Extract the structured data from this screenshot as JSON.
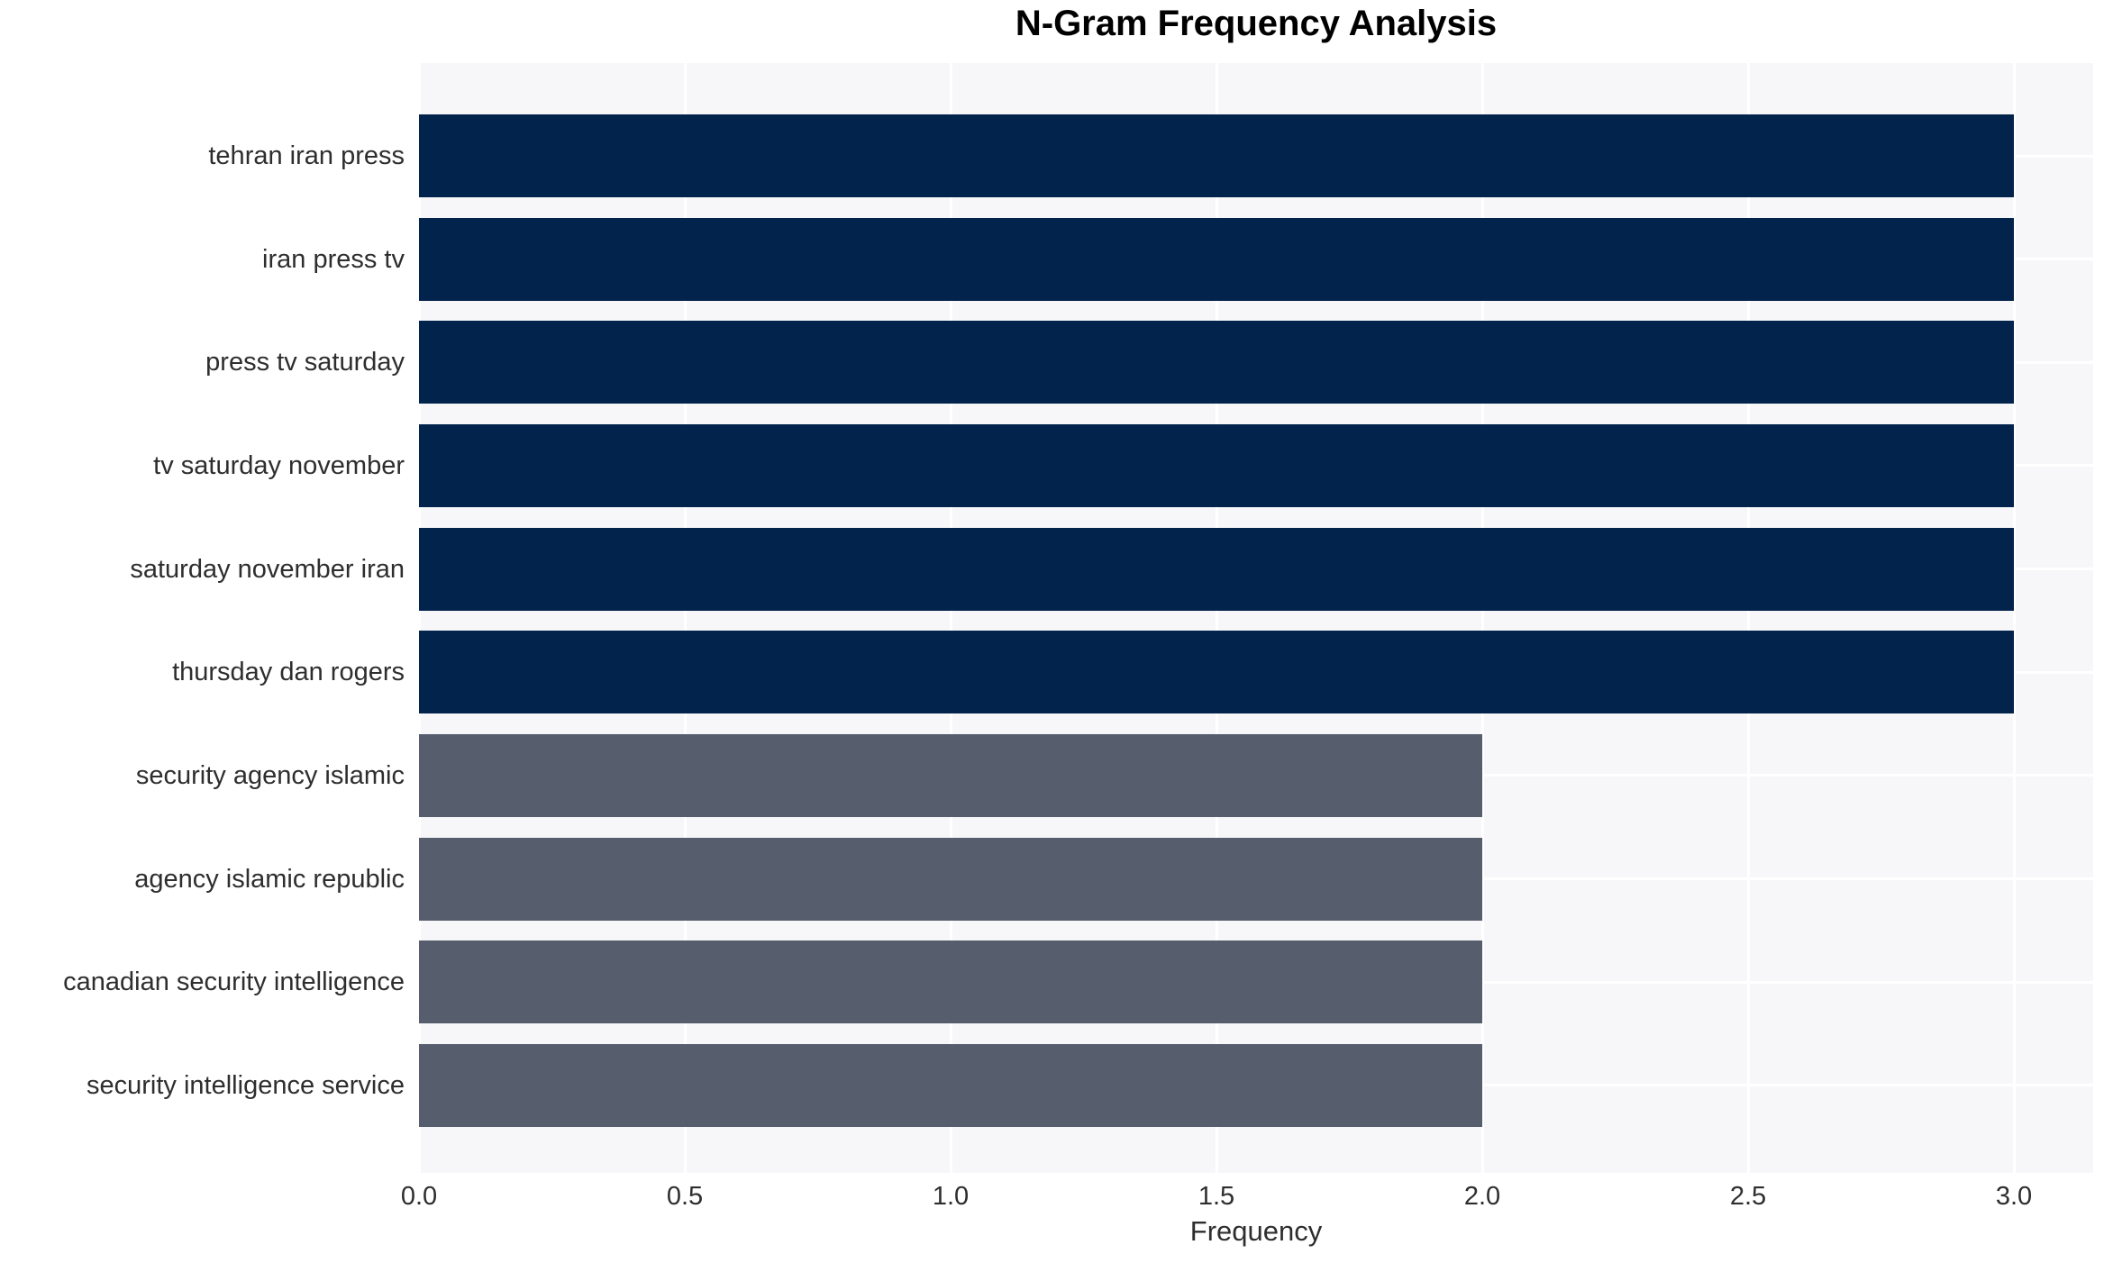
{
  "title": "N-Gram Frequency Analysis",
  "chart_data": {
    "type": "bar",
    "orientation": "horizontal",
    "title": "N-Gram Frequency Analysis",
    "xlabel": "Frequency",
    "ylabel": "",
    "categories": [
      "tehran iran press",
      "iran press tv",
      "press tv saturday",
      "tv saturday november",
      "saturday november iran",
      "thursday dan rogers",
      "security agency islamic",
      "agency islamic republic",
      "canadian security intelligence",
      "security intelligence service"
    ],
    "values": [
      3.0,
      3.0,
      3.0,
      3.0,
      3.0,
      3.0,
      2.0,
      2.0,
      2.0,
      2.0
    ],
    "bar_colors": [
      "#02234c",
      "#02234c",
      "#02234c",
      "#02234c",
      "#02234c",
      "#02234c",
      "#565d6d",
      "#565d6d",
      "#565d6d",
      "#565d6d"
    ],
    "xlim": [
      0,
      3.15
    ],
    "xticks": [
      0.0,
      0.5,
      1.0,
      1.5,
      2.0,
      2.5,
      3.0
    ],
    "xtick_labels": [
      "0.0",
      "0.5",
      "1.0",
      "1.5",
      "2.0",
      "2.5",
      "3.0"
    ],
    "grid": true,
    "legend": "none",
    "colors": {
      "plot_background": "#f7f7f9",
      "gridline": "#ffffff",
      "figure_background": "#ffffff",
      "text": "#2e2e2e",
      "title_text": "#000000",
      "bar_frequency_3": "#02234c",
      "bar_frequency_2": "#565d6d"
    }
  }
}
